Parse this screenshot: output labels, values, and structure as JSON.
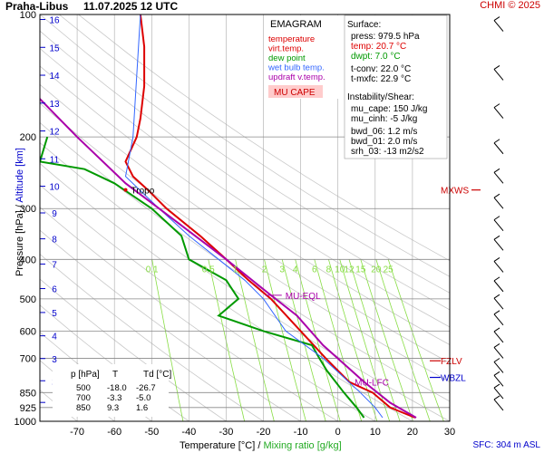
{
  "header": {
    "station": "Praha-Libus",
    "datetime": "11.07.2025 12 UTC",
    "credit": "CHMI © 2025",
    "sfc_label": "SFC: 304 m ASL"
  },
  "axes": {
    "xlabel_temp": "Temperature [°C]",
    "xlabel_sep": " / ",
    "xlabel_mix": "Mixing ratio [g/kg]",
    "ylabel_pres": "Pressure [hPa]",
    "ylabel_sep": " / ",
    "ylabel_alt": "Altitude [km]"
  },
  "legend": {
    "title": "EMAGRAM",
    "items": [
      {
        "label": "temperature",
        "color": "#dd0000"
      },
      {
        "label": "virt.temp.",
        "color": "#dd0000"
      },
      {
        "label": "dew point",
        "color": "#009900"
      },
      {
        "label": "wet bulb temp.",
        "color": "#3366ff"
      },
      {
        "label": "updraft v.temp.",
        "color": "#aa00aa"
      }
    ],
    "cape_label": "MU CAPE"
  },
  "surface": {
    "title": "Surface:",
    "press": "press: 979.5 hPa",
    "temp": "temp: 20.7 °C",
    "dwpt": "dwpt: 7.0 °C",
    "tconv": "t-conv: 22.0 °C",
    "tmxfc": "t-mxfc: 22.9 °C"
  },
  "instability": {
    "title": "Instability/Shear:",
    "lines": [
      "mu_cape: 150 J/kg",
      "mu_cinh: -5 J/kg",
      "bwd_06: 1.2 m/s",
      "bwd_01: 2.0 m/s",
      "srh_03: -13 m2/s2"
    ]
  },
  "levels_table": {
    "headers": [
      "p [hPa]",
      "T",
      "Td [°C]"
    ],
    "rows": [
      [
        "500",
        "-18.0",
        "-26.7"
      ],
      [
        "700",
        "-3.3",
        "-5.0"
      ],
      [
        "850",
        "9.3",
        "1.6"
      ]
    ]
  },
  "annotations": {
    "tropo": "Tropo",
    "mu_eql": "MU-EQL",
    "mu_lfc": "MU-LFC",
    "fzlv": "FZLV",
    "wbzl": "WBZL",
    "mxws": "MXWS"
  },
  "colors": {
    "temperature": "#dd0000",
    "dewpoint": "#009900",
    "wetbulb": "#3366ff",
    "updraft": "#aa00aa",
    "mixing": "#88dd44",
    "altitude": "#0000cc",
    "grid": "#aaaaaa"
  },
  "chart_data": {
    "type": "line",
    "x_ticks": [
      -70,
      -60,
      -50,
      -40,
      -30,
      -20,
      -10,
      0,
      10,
      20,
      30
    ],
    "xlim": [
      -80,
      30
    ],
    "y_ticks_pressure": [
      100,
      200,
      300,
      400,
      500,
      600,
      700,
      850,
      925,
      1000
    ],
    "ylim_pressure": [
      100,
      1000
    ],
    "altitude_ticks_km": [
      1,
      2,
      3,
      4,
      5,
      6,
      7,
      8,
      9,
      10,
      11,
      12,
      13,
      14,
      15,
      16
    ],
    "mixing_ratio_labels": [
      "0.1",
      "0.5",
      "1",
      "2",
      "3",
      "4",
      "6",
      "8",
      "10",
      "12",
      "15",
      "20",
      "25"
    ],
    "series": [
      {
        "name": "temperature",
        "points": [
          [
            -53,
            100
          ],
          [
            -52,
            120
          ],
          [
            -52,
            150
          ],
          [
            -53,
            180
          ],
          [
            -54,
            200
          ],
          [
            -57,
            230
          ],
          [
            -55,
            250
          ],
          [
            -51,
            270
          ],
          [
            -46,
            300
          ],
          [
            -37,
            350
          ],
          [
            -30,
            400
          ],
          [
            -24,
            450
          ],
          [
            -18,
            500
          ],
          [
            -10,
            600
          ],
          [
            -3.3,
            700
          ],
          [
            3,
            800
          ],
          [
            9.3,
            850
          ],
          [
            14,
            925
          ],
          [
            20.7,
            979.5
          ]
        ]
      },
      {
        "name": "dew point",
        "points": [
          [
            -78,
            200
          ],
          [
            -80,
            230
          ],
          [
            -68,
            240
          ],
          [
            -60,
            260
          ],
          [
            -50,
            300
          ],
          [
            -42,
            350
          ],
          [
            -40,
            400
          ],
          [
            -30,
            450
          ],
          [
            -26.7,
            500
          ],
          [
            -32,
            550
          ],
          [
            -20,
            600
          ],
          [
            -7,
            650
          ],
          [
            -5,
            700
          ],
          [
            -3,
            750
          ],
          [
            1.6,
            850
          ],
          [
            5,
            925
          ],
          [
            7,
            979.5
          ]
        ]
      },
      {
        "name": "wet bulb temp.",
        "points": [
          [
            -53,
            100
          ],
          [
            -55,
            200
          ],
          [
            -57,
            250
          ],
          [
            -48,
            300
          ],
          [
            -40,
            350
          ],
          [
            -32,
            400
          ],
          [
            -25,
            450
          ],
          [
            -20,
            500
          ],
          [
            -14,
            600
          ],
          [
            -4,
            700
          ],
          [
            6,
            850
          ],
          [
            10,
            925
          ],
          [
            12,
            979.5
          ]
        ]
      },
      {
        "name": "updraft v.temp.",
        "points": [
          [
            -90,
            130
          ],
          [
            -70,
            200
          ],
          [
            -57,
            260
          ],
          [
            -48,
            300
          ],
          [
            -30,
            400
          ],
          [
            -18,
            490
          ],
          [
            -11,
            550
          ],
          [
            -4,
            650
          ],
          [
            7,
            800
          ],
          [
            14,
            900
          ],
          [
            21,
            979.5
          ]
        ]
      }
    ],
    "grid": true
  }
}
